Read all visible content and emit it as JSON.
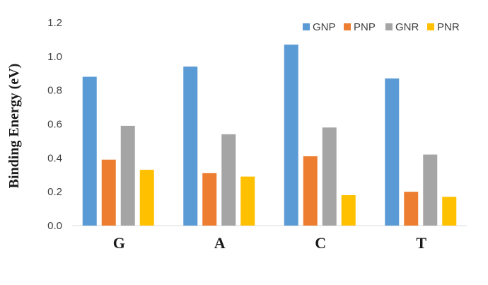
{
  "chart_data": {
    "type": "bar",
    "categories": [
      "G",
      "A",
      "C",
      "T"
    ],
    "series": [
      {
        "name": "GNP",
        "color": "#5B9BD5",
        "values": [
          0.88,
          0.94,
          1.07,
          0.87
        ]
      },
      {
        "name": "PNP",
        "color": "#ED7D31",
        "values": [
          0.39,
          0.31,
          0.41,
          0.2
        ]
      },
      {
        "name": "GNR",
        "color": "#A5A5A5",
        "values": [
          0.59,
          0.54,
          0.58,
          0.42
        ]
      },
      {
        "name": "PNR",
        "color": "#FFC000",
        "values": [
          0.33,
          0.29,
          0.18,
          0.17
        ]
      }
    ],
    "title": "",
    "xlabel": "",
    "ylabel": "Binding Energy (eV)",
    "ylim": [
      0,
      1.2
    ],
    "yticks": [
      "0.0",
      "0.2",
      "0.4",
      "0.6",
      "0.8",
      "1.0",
      "1.2"
    ],
    "grid": false,
    "legend_position": "top-right"
  }
}
